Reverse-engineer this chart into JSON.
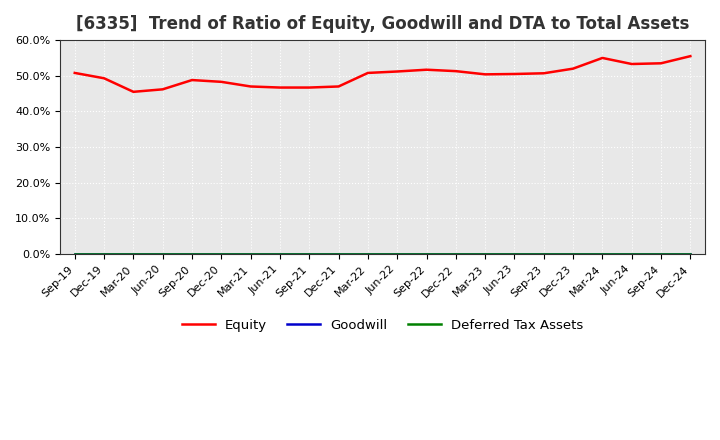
{
  "title": "[6335]  Trend of Ratio of Equity, Goodwill and DTA to Total Assets",
  "x_labels": [
    "Sep-19",
    "Dec-19",
    "Mar-20",
    "Jun-20",
    "Sep-20",
    "Dec-20",
    "Mar-21",
    "Jun-21",
    "Sep-21",
    "Dec-21",
    "Mar-22",
    "Jun-22",
    "Sep-22",
    "Dec-22",
    "Mar-23",
    "Jun-23",
    "Sep-23",
    "Dec-23",
    "Mar-24",
    "Jun-24",
    "Sep-24",
    "Dec-24"
  ],
  "equity": [
    50.8,
    49.3,
    45.5,
    46.2,
    48.8,
    48.3,
    47.0,
    46.7,
    46.7,
    47.0,
    50.8,
    51.2,
    51.7,
    51.3,
    50.4,
    50.5,
    50.7,
    52.0,
    55.0,
    53.3,
    53.5,
    55.5
  ],
  "goodwill": [
    0.0,
    0.0,
    0.0,
    0.0,
    0.0,
    0.0,
    0.0,
    0.0,
    0.0,
    0.0,
    0.0,
    0.0,
    0.0,
    0.0,
    0.0,
    0.0,
    0.0,
    0.0,
    0.0,
    0.0,
    0.0,
    0.0
  ],
  "dta": [
    0.0,
    0.0,
    0.0,
    0.0,
    0.0,
    0.0,
    0.0,
    0.0,
    0.0,
    0.0,
    0.0,
    0.0,
    0.0,
    0.0,
    0.0,
    0.0,
    0.0,
    0.0,
    0.0,
    0.0,
    0.0,
    0.0
  ],
  "equity_color": "#FF0000",
  "goodwill_color": "#0000CC",
  "dta_color": "#008000",
  "ylim_min": 0,
  "ylim_max": 60,
  "ytick_values": [
    0,
    10,
    20,
    30,
    40,
    50,
    60
  ],
  "ytick_labels": [
    "0.0%",
    "10.0%",
    "20.0%",
    "30.0%",
    "40.0%",
    "50.0%",
    "60.0%"
  ],
  "plot_bg_color": "#E8E8E8",
  "fig_bg_color": "#FFFFFF",
  "grid_color": "#FFFFFF",
  "spine_color": "#333333",
  "title_color": "#333333",
  "title_fontsize": 12,
  "tick_fontsize": 8,
  "legend_labels": [
    "Equity",
    "Goodwill",
    "Deferred Tax Assets"
  ],
  "line_width": 1.8
}
